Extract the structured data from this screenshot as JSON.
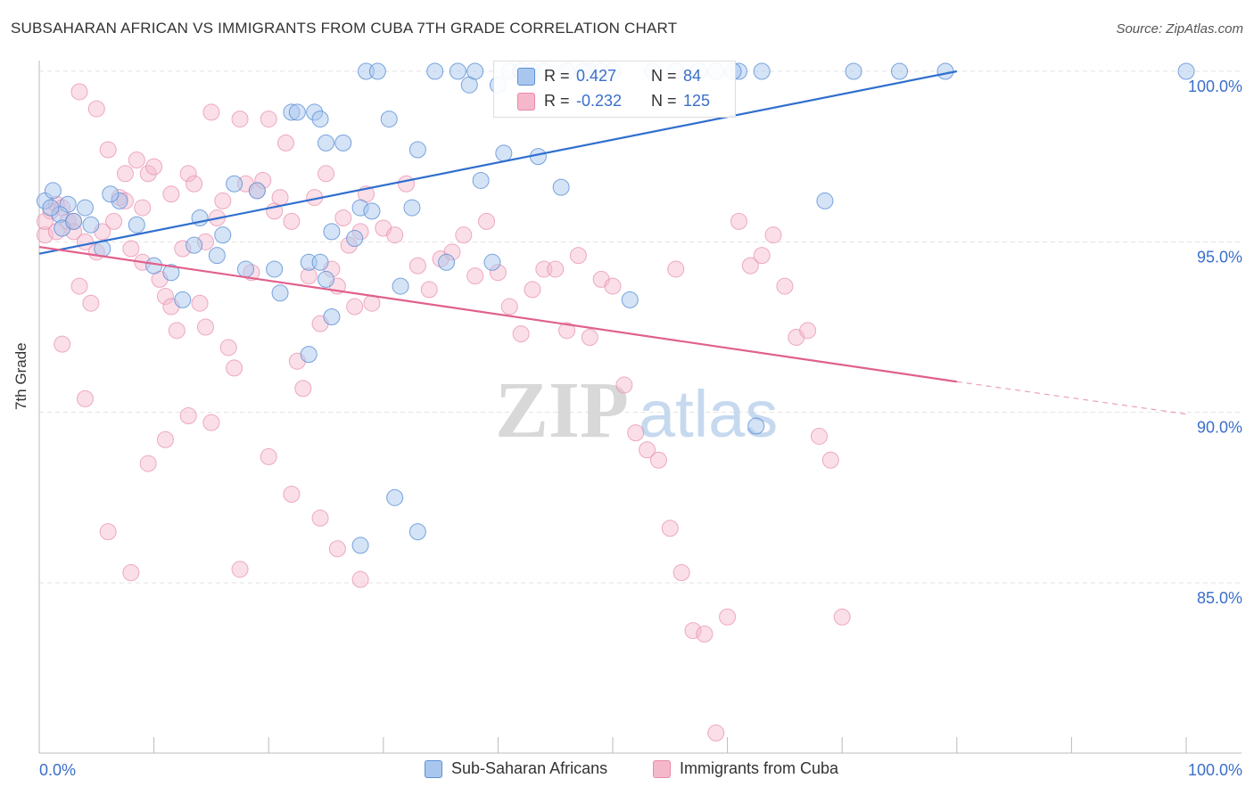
{
  "title": "SUBSAHARAN AFRICAN VS IMMIGRANTS FROM CUBA 7TH GRADE CORRELATION CHART",
  "source": "Source: ZipAtlas.com",
  "watermark": {
    "zip": "ZIP",
    "atlas": "atlas"
  },
  "legend": {
    "series1": {
      "r_label": "R =",
      "r_value": "0.427",
      "n_label": "N =",
      "n_value": "84"
    },
    "series2": {
      "r_label": "R =",
      "r_value": "-0.232",
      "n_label": "N =",
      "n_value": "125"
    }
  },
  "bottom_legend": [
    "Sub-Saharan Africans",
    "Immigrants from Cuba"
  ],
  "colors": {
    "blue_fill": "#a9c7ee",
    "blue_stroke": "#5b8fd6",
    "blue_line": "#2f6fce",
    "pink_fill": "#f5b8cb",
    "pink_stroke": "#e88aa8",
    "pink_line": "#e0608c",
    "tick_text": "#3a6fc9",
    "grid": "#e2e2e2"
  },
  "chart_data": {
    "type": "scatter",
    "title": "SUBSAHARAN AFRICAN VS IMMIGRANTS FROM CUBA 7TH GRADE CORRELATION CHART",
    "xlabel": "",
    "ylabel": "7th Grade",
    "x_tick_labels": [
      "0.0%",
      "100.0%"
    ],
    "y_tick_labels": [
      "85.0%",
      "90.0%",
      "95.0%",
      "100.0%"
    ],
    "y_ticks": [
      85,
      90,
      95,
      100
    ],
    "xlim": [
      0,
      100
    ],
    "ylim": [
      80.5,
      100.3
    ],
    "grid": true,
    "legend_position": "top-center",
    "series": [
      {
        "name": "Sub-Saharan Africans",
        "r": 0.427,
        "n": 84,
        "trend": {
          "x0": 0,
          "y0": 94.65,
          "x1": 80,
          "y1": 100.0
        },
        "points": [
          [
            0.5,
            96.2
          ],
          [
            1.2,
            96.5
          ],
          [
            2.5,
            96.1
          ],
          [
            1.8,
            95.8
          ],
          [
            4.5,
            95.5
          ],
          [
            5.5,
            94.8
          ],
          [
            7.0,
            96.2
          ],
          [
            6.2,
            96.4
          ],
          [
            8.5,
            95.5
          ],
          [
            10.0,
            94.3
          ],
          [
            11.5,
            94.1
          ],
          [
            12.5,
            93.3
          ],
          [
            13.5,
            94.9
          ],
          [
            14.0,
            95.7
          ],
          [
            15.5,
            94.6
          ],
          [
            16.0,
            95.2
          ],
          [
            17.0,
            96.7
          ],
          [
            18.0,
            94.2
          ],
          [
            19.0,
            96.5
          ],
          [
            20.5,
            94.2
          ],
          [
            21.0,
            93.5
          ],
          [
            22.0,
            98.8
          ],
          [
            23.5,
            94.4
          ],
          [
            24.5,
            94.4
          ],
          [
            25.0,
            93.9
          ],
          [
            25.5,
            95.3
          ],
          [
            26.5,
            97.9
          ],
          [
            27.5,
            95.1
          ],
          [
            28.0,
            96.0
          ],
          [
            29.0,
            95.9
          ],
          [
            22.5,
            98.8
          ],
          [
            23.5,
            91.7
          ],
          [
            25.5,
            92.8
          ],
          [
            24.0,
            98.8
          ],
          [
            25.0,
            97.9
          ],
          [
            24.5,
            98.6
          ],
          [
            28.5,
            100.0
          ],
          [
            29.5,
            100.0
          ],
          [
            30.5,
            98.6
          ],
          [
            31.5,
            93.7
          ],
          [
            32.5,
            96.0
          ],
          [
            33.0,
            97.7
          ],
          [
            35.5,
            94.4
          ],
          [
            36.5,
            100.0
          ],
          [
            37.5,
            99.6
          ],
          [
            38.5,
            96.8
          ],
          [
            39.5,
            94.4
          ],
          [
            40.5,
            97.6
          ],
          [
            41.0,
            100.0
          ],
          [
            42.0,
            100.0
          ],
          [
            43.0,
            100.0
          ],
          [
            43.5,
            97.5
          ],
          [
            44.0,
            100.0
          ],
          [
            45.5,
            96.6
          ],
          [
            46.0,
            100.0
          ],
          [
            47.5,
            100.0
          ],
          [
            48.0,
            100.0
          ],
          [
            49.0,
            100.0
          ],
          [
            50.0,
            100.0
          ],
          [
            51.5,
            93.3
          ],
          [
            55.5,
            100.0
          ],
          [
            59.0,
            100.0
          ],
          [
            61.0,
            100.0
          ],
          [
            63.0,
            100.0
          ],
          [
            71.0,
            100.0
          ],
          [
            75.0,
            100.0
          ],
          [
            79.0,
            100.0
          ],
          [
            68.5,
            96.2
          ],
          [
            62.5,
            89.6
          ],
          [
            31.0,
            87.5
          ],
          [
            28.0,
            86.1
          ],
          [
            33.0,
            86.5
          ],
          [
            42.0,
            100.0
          ],
          [
            40.0,
            99.6
          ],
          [
            53.5,
            100.0
          ],
          [
            57.5,
            100.0
          ],
          [
            60.5,
            100.0
          ],
          [
            34.5,
            100.0
          ],
          [
            38.0,
            100.0
          ],
          [
            1.0,
            96.0
          ],
          [
            2.0,
            95.4
          ],
          [
            3.0,
            95.6
          ],
          [
            4.0,
            96.0
          ],
          [
            100.0,
            100.0
          ]
        ]
      },
      {
        "name": "Immigrants from Cuba",
        "r": -0.232,
        "n": 125,
        "trend": {
          "x0": 0,
          "y0": 94.85,
          "x1": 80,
          "y1": 90.9
        },
        "trend_dashed": {
          "x0": 80,
          "y0": 90.9,
          "x1": 100,
          "y1": 89.95
        },
        "points": [
          [
            0.5,
            95.2
          ],
          [
            1.0,
            95.9
          ],
          [
            1.5,
            96.1
          ],
          [
            2.5,
            95.6
          ],
          [
            3.0,
            95.3
          ],
          [
            3.5,
            93.7
          ],
          [
            4.0,
            95.0
          ],
          [
            4.5,
            93.2
          ],
          [
            5.0,
            94.7
          ],
          [
            5.5,
            95.3
          ],
          [
            6.0,
            97.7
          ],
          [
            6.5,
            95.6
          ],
          [
            7.0,
            96.3
          ],
          [
            7.5,
            96.2
          ],
          [
            8.0,
            94.8
          ],
          [
            8.5,
            97.4
          ],
          [
            9.0,
            94.4
          ],
          [
            9.5,
            97.0
          ],
          [
            10.0,
            97.2
          ],
          [
            10.5,
            93.9
          ],
          [
            11.0,
            93.4
          ],
          [
            11.5,
            93.1
          ],
          [
            12.0,
            92.4
          ],
          [
            12.5,
            94.8
          ],
          [
            13.0,
            97.0
          ],
          [
            13.5,
            96.7
          ],
          [
            14.0,
            93.2
          ],
          [
            14.5,
            92.5
          ],
          [
            15.0,
            98.8
          ],
          [
            15.5,
            95.7
          ],
          [
            16.0,
            96.2
          ],
          [
            16.5,
            91.9
          ],
          [
            17.0,
            91.3
          ],
          [
            17.5,
            98.6
          ],
          [
            18.0,
            96.7
          ],
          [
            18.5,
            94.1
          ],
          [
            19.0,
            96.5
          ],
          [
            19.5,
            96.8
          ],
          [
            20.0,
            98.6
          ],
          [
            20.5,
            95.9
          ],
          [
            21.0,
            96.3
          ],
          [
            21.5,
            97.9
          ],
          [
            22.0,
            95.6
          ],
          [
            22.5,
            91.5
          ],
          [
            23.0,
            90.7
          ],
          [
            23.5,
            94.0
          ],
          [
            24.0,
            96.3
          ],
          [
            24.5,
            92.6
          ],
          [
            25.0,
            97.0
          ],
          [
            25.5,
            94.2
          ],
          [
            26.0,
            93.7
          ],
          [
            26.5,
            95.7
          ],
          [
            27.0,
            94.9
          ],
          [
            27.5,
            93.1
          ],
          [
            28.0,
            95.3
          ],
          [
            28.5,
            96.4
          ],
          [
            29.0,
            93.2
          ],
          [
            30.0,
            95.4
          ],
          [
            31.0,
            95.2
          ],
          [
            32.0,
            96.7
          ],
          [
            33.0,
            94.3
          ],
          [
            34.0,
            93.6
          ],
          [
            35.0,
            94.5
          ],
          [
            36.0,
            94.7
          ],
          [
            37.0,
            95.2
          ],
          [
            38.0,
            94.0
          ],
          [
            39.0,
            95.6
          ],
          [
            40.0,
            94.1
          ],
          [
            41.0,
            93.1
          ],
          [
            42.0,
            92.3
          ],
          [
            43.0,
            93.6
          ],
          [
            44.0,
            94.2
          ],
          [
            45.0,
            94.2
          ],
          [
            46.0,
            92.4
          ],
          [
            47.0,
            94.6
          ],
          [
            48.0,
            92.2
          ],
          [
            49.0,
            93.9
          ],
          [
            50.0,
            93.7
          ],
          [
            51.0,
            90.8
          ],
          [
            52.0,
            89.4
          ],
          [
            53.0,
            88.9
          ],
          [
            54.0,
            88.6
          ],
          [
            55.0,
            86.6
          ],
          [
            56.0,
            85.3
          ],
          [
            57.0,
            83.6
          ],
          [
            58.0,
            83.5
          ],
          [
            59.0,
            80.6
          ],
          [
            60.0,
            84.0
          ],
          [
            61.0,
            95.6
          ],
          [
            62.0,
            94.3
          ],
          [
            63.0,
            94.6
          ],
          [
            64.0,
            95.2
          ],
          [
            65.0,
            93.7
          ],
          [
            66.0,
            92.2
          ],
          [
            67.0,
            92.4
          ],
          [
            68.0,
            89.3
          ],
          [
            69.0,
            88.6
          ],
          [
            70.0,
            84.0
          ],
          [
            2.0,
            92.0
          ],
          [
            4.0,
            90.4
          ],
          [
            6.0,
            86.5
          ],
          [
            8.0,
            85.3
          ],
          [
            9.5,
            88.5
          ],
          [
            11.0,
            89.2
          ],
          [
            13.0,
            89.9
          ],
          [
            15.0,
            89.7
          ],
          [
            17.5,
            85.4
          ],
          [
            20.0,
            88.7
          ],
          [
            22.0,
            87.6
          ],
          [
            24.5,
            86.9
          ],
          [
            26.0,
            86.0
          ],
          [
            28.0,
            85.1
          ],
          [
            3.5,
            99.4
          ],
          [
            5.0,
            98.9
          ],
          [
            7.5,
            97.0
          ],
          [
            9.0,
            96.0
          ],
          [
            11.5,
            96.4
          ],
          [
            14.5,
            95.0
          ],
          [
            0.5,
            95.6
          ],
          [
            1.5,
            95.3
          ],
          [
            2.0,
            96.0
          ],
          [
            3.0,
            95.6
          ],
          [
            55.5,
            94.2
          ]
        ]
      }
    ]
  }
}
